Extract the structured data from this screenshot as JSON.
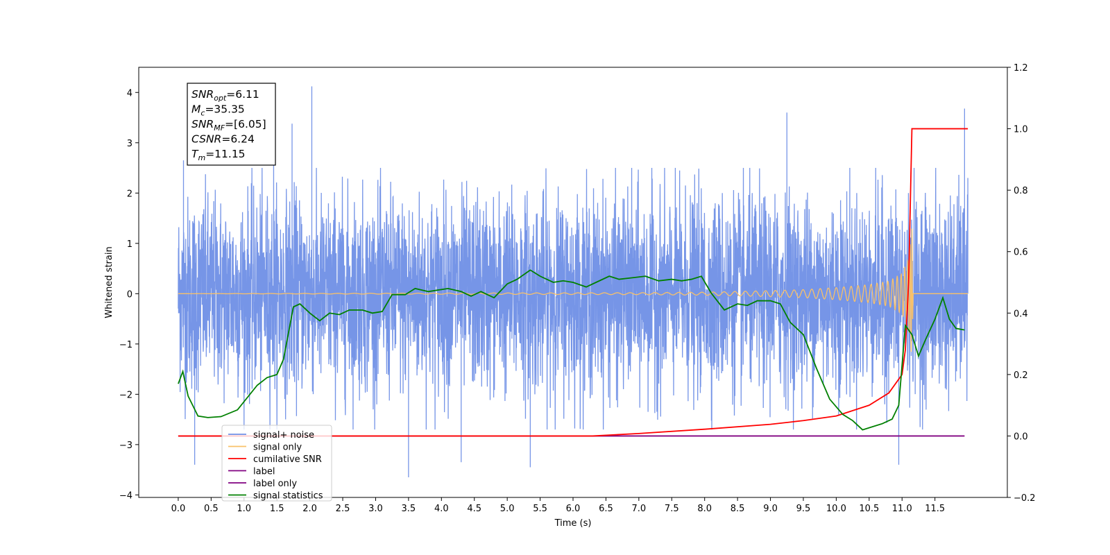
{
  "chart_data": {
    "type": "line",
    "xlabel": "Time (s)",
    "ylabel": "Whitened strain",
    "xlim": [
      -0.6,
      12.6
    ],
    "ylim": [
      -4.05,
      4.5
    ],
    "ylim_right": [
      -0.2,
      1.2
    ],
    "x_ticks": [
      "0.0",
      "0.5",
      "1.0",
      "1.5",
      "2.0",
      "2.5",
      "3.0",
      "3.5",
      "4.0",
      "4.5",
      "5.0",
      "5.5",
      "6.0",
      "6.5",
      "7.0",
      "7.5",
      "8.0",
      "8.5",
      "9.0",
      "9.5",
      "10.0",
      "10.5",
      "11.0",
      "11.5"
    ],
    "y_ticks_left": [
      4,
      3,
      2,
      1,
      0,
      -1,
      -2,
      -3,
      -4
    ],
    "y_tick_labels_left": [
      "4",
      "3",
      "2",
      "1",
      "0",
      "−1",
      "−2",
      "−3",
      "−4"
    ],
    "y_ticks_right": [
      1.2,
      1.0,
      0.8,
      0.6,
      0.4,
      0.2,
      0.0,
      -0.2
    ],
    "y_tick_labels_right": [
      "1.2",
      "1.0",
      "0.8",
      "0.6",
      "0.4",
      "0.2",
      "0.0",
      "−0.2"
    ],
    "annotation": {
      "lines": [
        {
          "sym": "SNR",
          "sub": "opt",
          "val": "=6.11"
        },
        {
          "sym": "M",
          "sub": "c",
          "val": "=35.35"
        },
        {
          "sym": "SNR",
          "sub": "MF",
          "val": "=[6.05]"
        },
        {
          "sym": "CSNR",
          "sub": "",
          "val": "=6.24"
        },
        {
          "sym": "T",
          "sub": "m",
          "val": "=11.15"
        }
      ]
    },
    "legend": {
      "position": "lower-left",
      "entries": [
        {
          "label": "signal+ noise",
          "color": "#6f8fe6"
        },
        {
          "label": "signal only",
          "color": "#f9c169"
        },
        {
          "label": "cumilative SNR",
          "color": "#ff0000"
        },
        {
          "label": "label",
          "color": "#800080"
        },
        {
          "label": "label only",
          "color": "#800080"
        },
        {
          "label": "signal statistics",
          "color": "#008000"
        }
      ]
    },
    "series": [
      {
        "name": "signal+ noise",
        "axis": "left",
        "color": "#6f8fe6",
        "x_range": [
          0.0,
          12.0
        ],
        "amplitude_envelope": 2.2,
        "notable_peaks": [
          [
            0.08,
            2.65
          ],
          [
            0.25,
            -3.4
          ],
          [
            2.03,
            4.12
          ],
          [
            1.45,
            3.6
          ],
          [
            1.73,
            3.38
          ],
          [
            3.5,
            -3.65
          ],
          [
            4.3,
            -3.35
          ],
          [
            5.35,
            -3.45
          ],
          [
            9.25,
            3.6
          ],
          [
            11.95,
            3.68
          ],
          [
            10.95,
            -3.4
          ],
          [
            12.0,
            2.3
          ]
        ]
      },
      {
        "name": "signal only",
        "axis": "left",
        "color": "#f9c169",
        "x": [
          0,
          7,
          8,
          9,
          9.5,
          10,
          10.5,
          10.8,
          11.0,
          11.1,
          11.15,
          11.17,
          12.0
        ],
        "y_envelope": [
          0.0,
          0.02,
          0.03,
          0.06,
          0.08,
          0.12,
          0.18,
          0.25,
          0.4,
          0.7,
          1.3,
          0.0,
          0.0
        ]
      },
      {
        "name": "cumilative SNR",
        "axis": "right",
        "color": "#ff0000",
        "x": [
          0,
          6.0,
          6.3,
          7.0,
          8.0,
          9.0,
          9.5,
          10.0,
          10.5,
          10.8,
          11.0,
          11.05,
          11.1,
          11.15,
          11.3,
          12.0
        ],
        "y": [
          0.0,
          0.0,
          0.0,
          0.008,
          0.022,
          0.038,
          0.05,
          0.065,
          0.1,
          0.14,
          0.2,
          0.28,
          0.5,
          1.0,
          1.0,
          1.0
        ]
      },
      {
        "name": "label",
        "axis": "right",
        "color": "#800080",
        "x": [
          0,
          11.95
        ],
        "y": [
          0.0,
          0.0
        ]
      },
      {
        "name": "signal statistics",
        "axis": "right",
        "color": "#008000",
        "x": [
          0.0,
          0.07,
          0.15,
          0.3,
          0.45,
          0.65,
          0.9,
          1.05,
          1.2,
          1.35,
          1.5,
          1.6,
          1.75,
          1.85,
          2.0,
          2.15,
          2.3,
          2.45,
          2.6,
          2.8,
          2.95,
          3.1,
          3.25,
          3.45,
          3.6,
          3.8,
          3.95,
          4.1,
          4.3,
          4.45,
          4.6,
          4.8,
          5.0,
          5.15,
          5.35,
          5.5,
          5.7,
          5.85,
          6.0,
          6.2,
          6.35,
          6.55,
          6.7,
          6.9,
          7.1,
          7.3,
          7.5,
          7.65,
          7.8,
          7.95,
          8.1,
          8.3,
          8.5,
          8.65,
          8.8,
          9.0,
          9.15,
          9.3,
          9.5,
          9.7,
          9.9,
          10.1,
          10.25,
          10.4,
          10.55,
          10.7,
          10.85,
          10.95,
          11.05,
          11.15,
          11.25,
          11.35,
          11.5,
          11.62,
          11.72,
          11.82,
          11.95
        ],
        "y": [
          0.17,
          0.21,
          0.13,
          0.065,
          0.06,
          0.063,
          0.085,
          0.125,
          0.165,
          0.19,
          0.2,
          0.25,
          0.42,
          0.43,
          0.4,
          0.375,
          0.4,
          0.395,
          0.41,
          0.41,
          0.4,
          0.405,
          0.46,
          0.46,
          0.48,
          0.47,
          0.475,
          0.48,
          0.47,
          0.455,
          0.47,
          0.45,
          0.495,
          0.51,
          0.54,
          0.52,
          0.5,
          0.505,
          0.5,
          0.485,
          0.5,
          0.52,
          0.51,
          0.515,
          0.52,
          0.505,
          0.51,
          0.505,
          0.51,
          0.52,
          0.465,
          0.41,
          0.43,
          0.425,
          0.44,
          0.44,
          0.43,
          0.37,
          0.33,
          0.22,
          0.12,
          0.07,
          0.05,
          0.02,
          0.03,
          0.04,
          0.055,
          0.1,
          0.36,
          0.33,
          0.26,
          0.31,
          0.38,
          0.45,
          0.38,
          0.35,
          0.345
        ]
      }
    ]
  }
}
